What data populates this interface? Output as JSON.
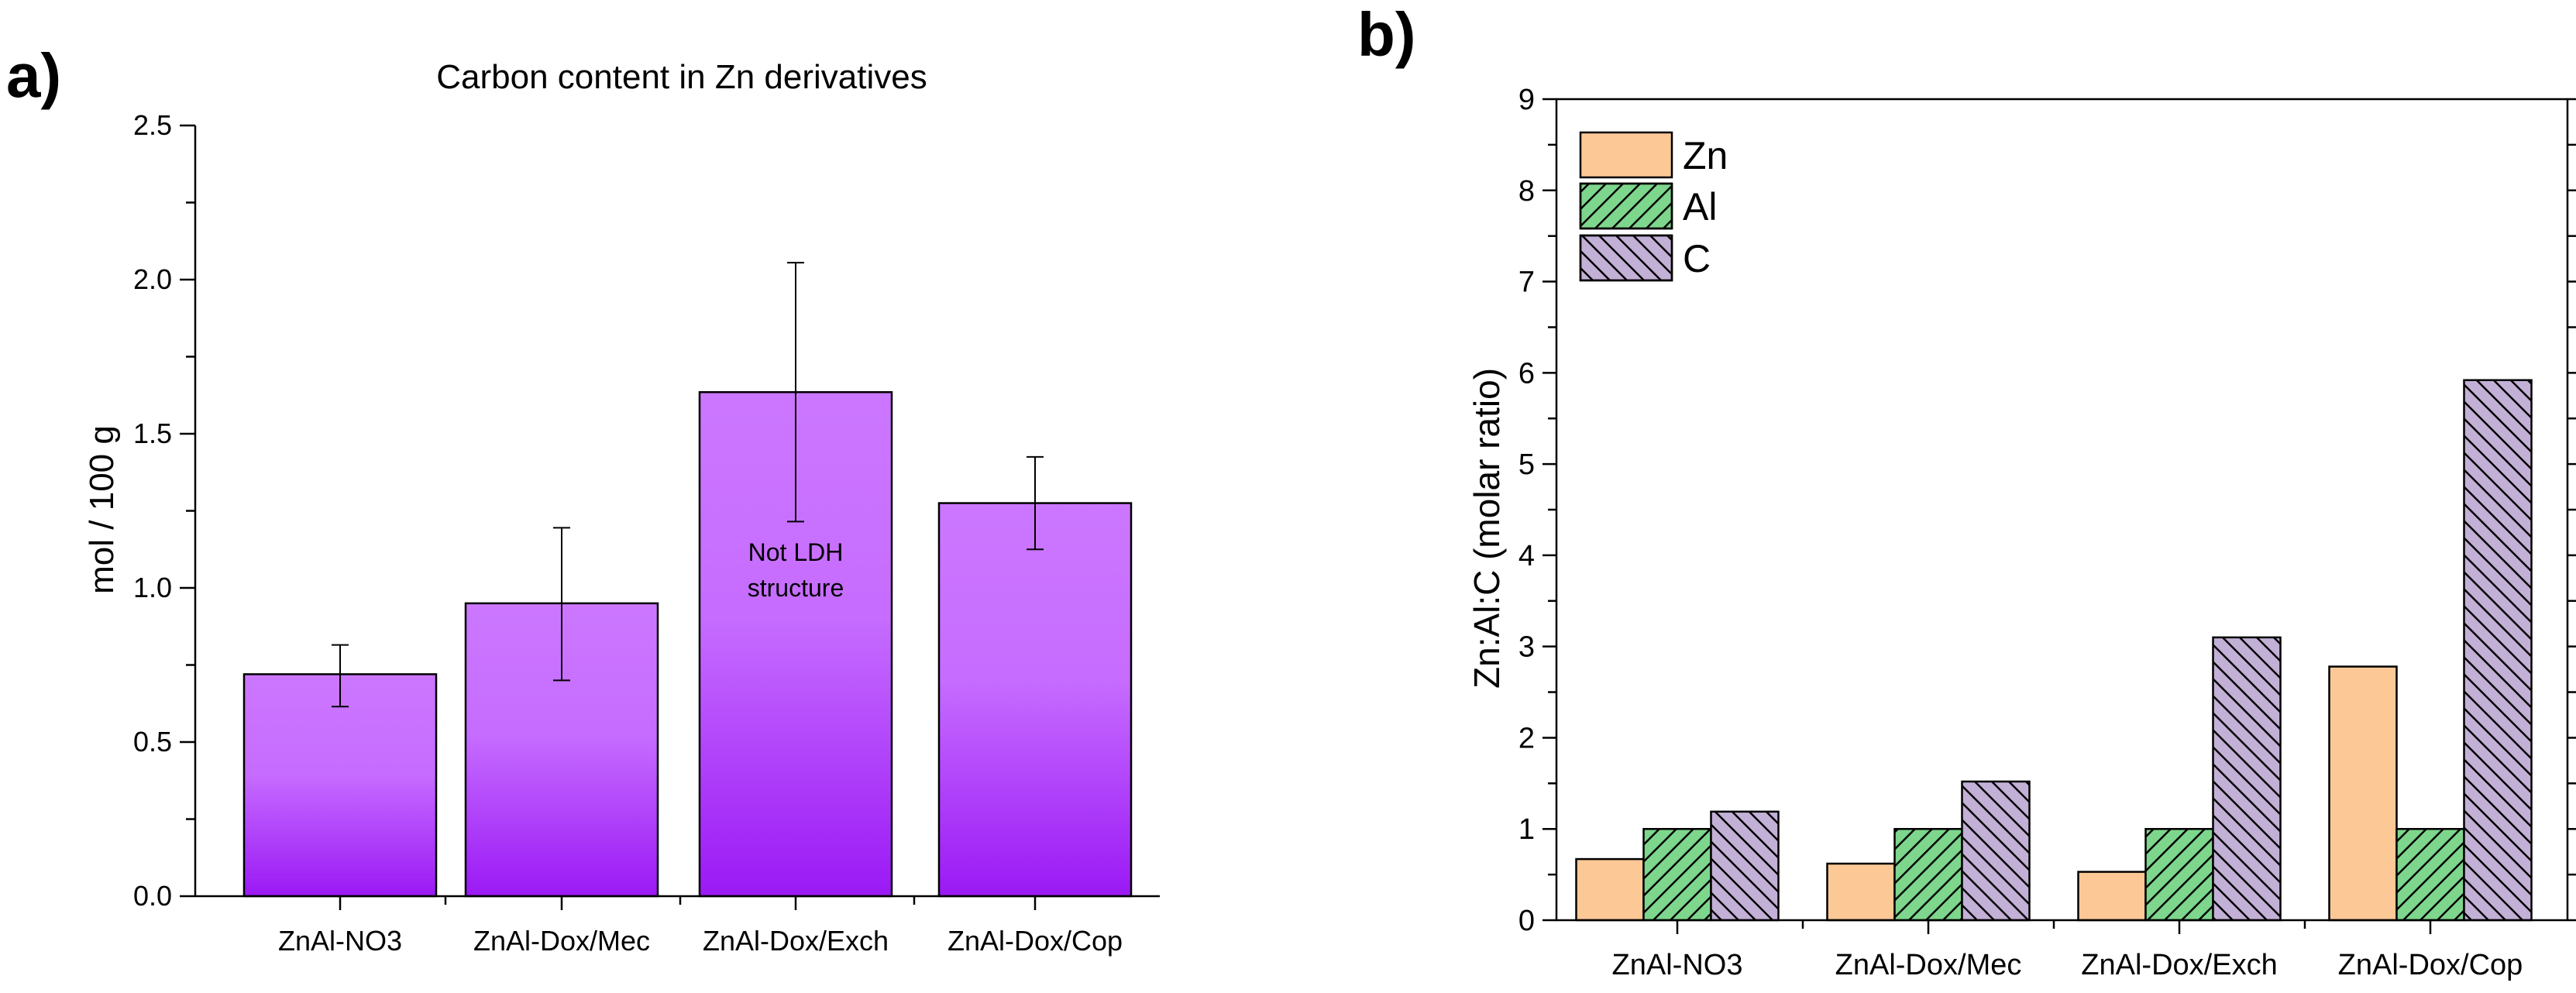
{
  "chart_data": [
    {
      "panel_label": "a)",
      "type": "bar",
      "title": "Carbon content in Zn derivatives",
      "xlabel": "",
      "ylabel": "mol / 100 g",
      "ylim": [
        0,
        2.5
      ],
      "yticks": [
        "0.0",
        "0.5",
        "1.0",
        "1.5",
        "2.0",
        "2.5"
      ],
      "categories": [
        "ZnAl-NO3",
        "ZnAl-Dox/Mec",
        "ZnAl-Dox/Exch",
        "ZnAl-Dox/Cop"
      ],
      "values": [
        0.72,
        0.95,
        1.635,
        1.275
      ],
      "error_low": [
        0.615,
        0.7,
        1.215,
        1.125
      ],
      "error_high": [
        0.815,
        1.195,
        2.055,
        1.425
      ],
      "annotation": {
        "category_index": 2,
        "lines": [
          "Not LDH",
          "structure"
        ]
      },
      "colors": {
        "top": "#cc77ff",
        "bottom": "#9b19f5",
        "edge": "#000000"
      },
      "grid": false
    },
    {
      "panel_label": "b)",
      "type": "bar",
      "title": "",
      "xlabel": "",
      "ylabel": "Zn:Al:C (molar ratio)",
      "ylim": [
        0,
        9
      ],
      "yticks": [
        "0",
        "1",
        "2",
        "3",
        "4",
        "5",
        "6",
        "7",
        "8",
        "9"
      ],
      "categories": [
        "ZnAl-NO3",
        "ZnAl-Dox/Mec",
        "ZnAl-Dox/Exch",
        "ZnAl-Dox/Cop"
      ],
      "series": [
        {
          "name": "Zn",
          "values": [
            0.67,
            0.62,
            0.53,
            2.78
          ],
          "color": "#fcc896",
          "pattern": "none"
        },
        {
          "name": "Al",
          "values": [
            1.0,
            1.0,
            1.0,
            1.0
          ],
          "color": "#7dd68c",
          "pattern": "forward"
        },
        {
          "name": "C",
          "values": [
            1.19,
            1.52,
            3.1,
            5.92
          ],
          "color": "#c3b0d6",
          "pattern": "back"
        }
      ],
      "legend_position": "top-left",
      "grid": false
    }
  ]
}
